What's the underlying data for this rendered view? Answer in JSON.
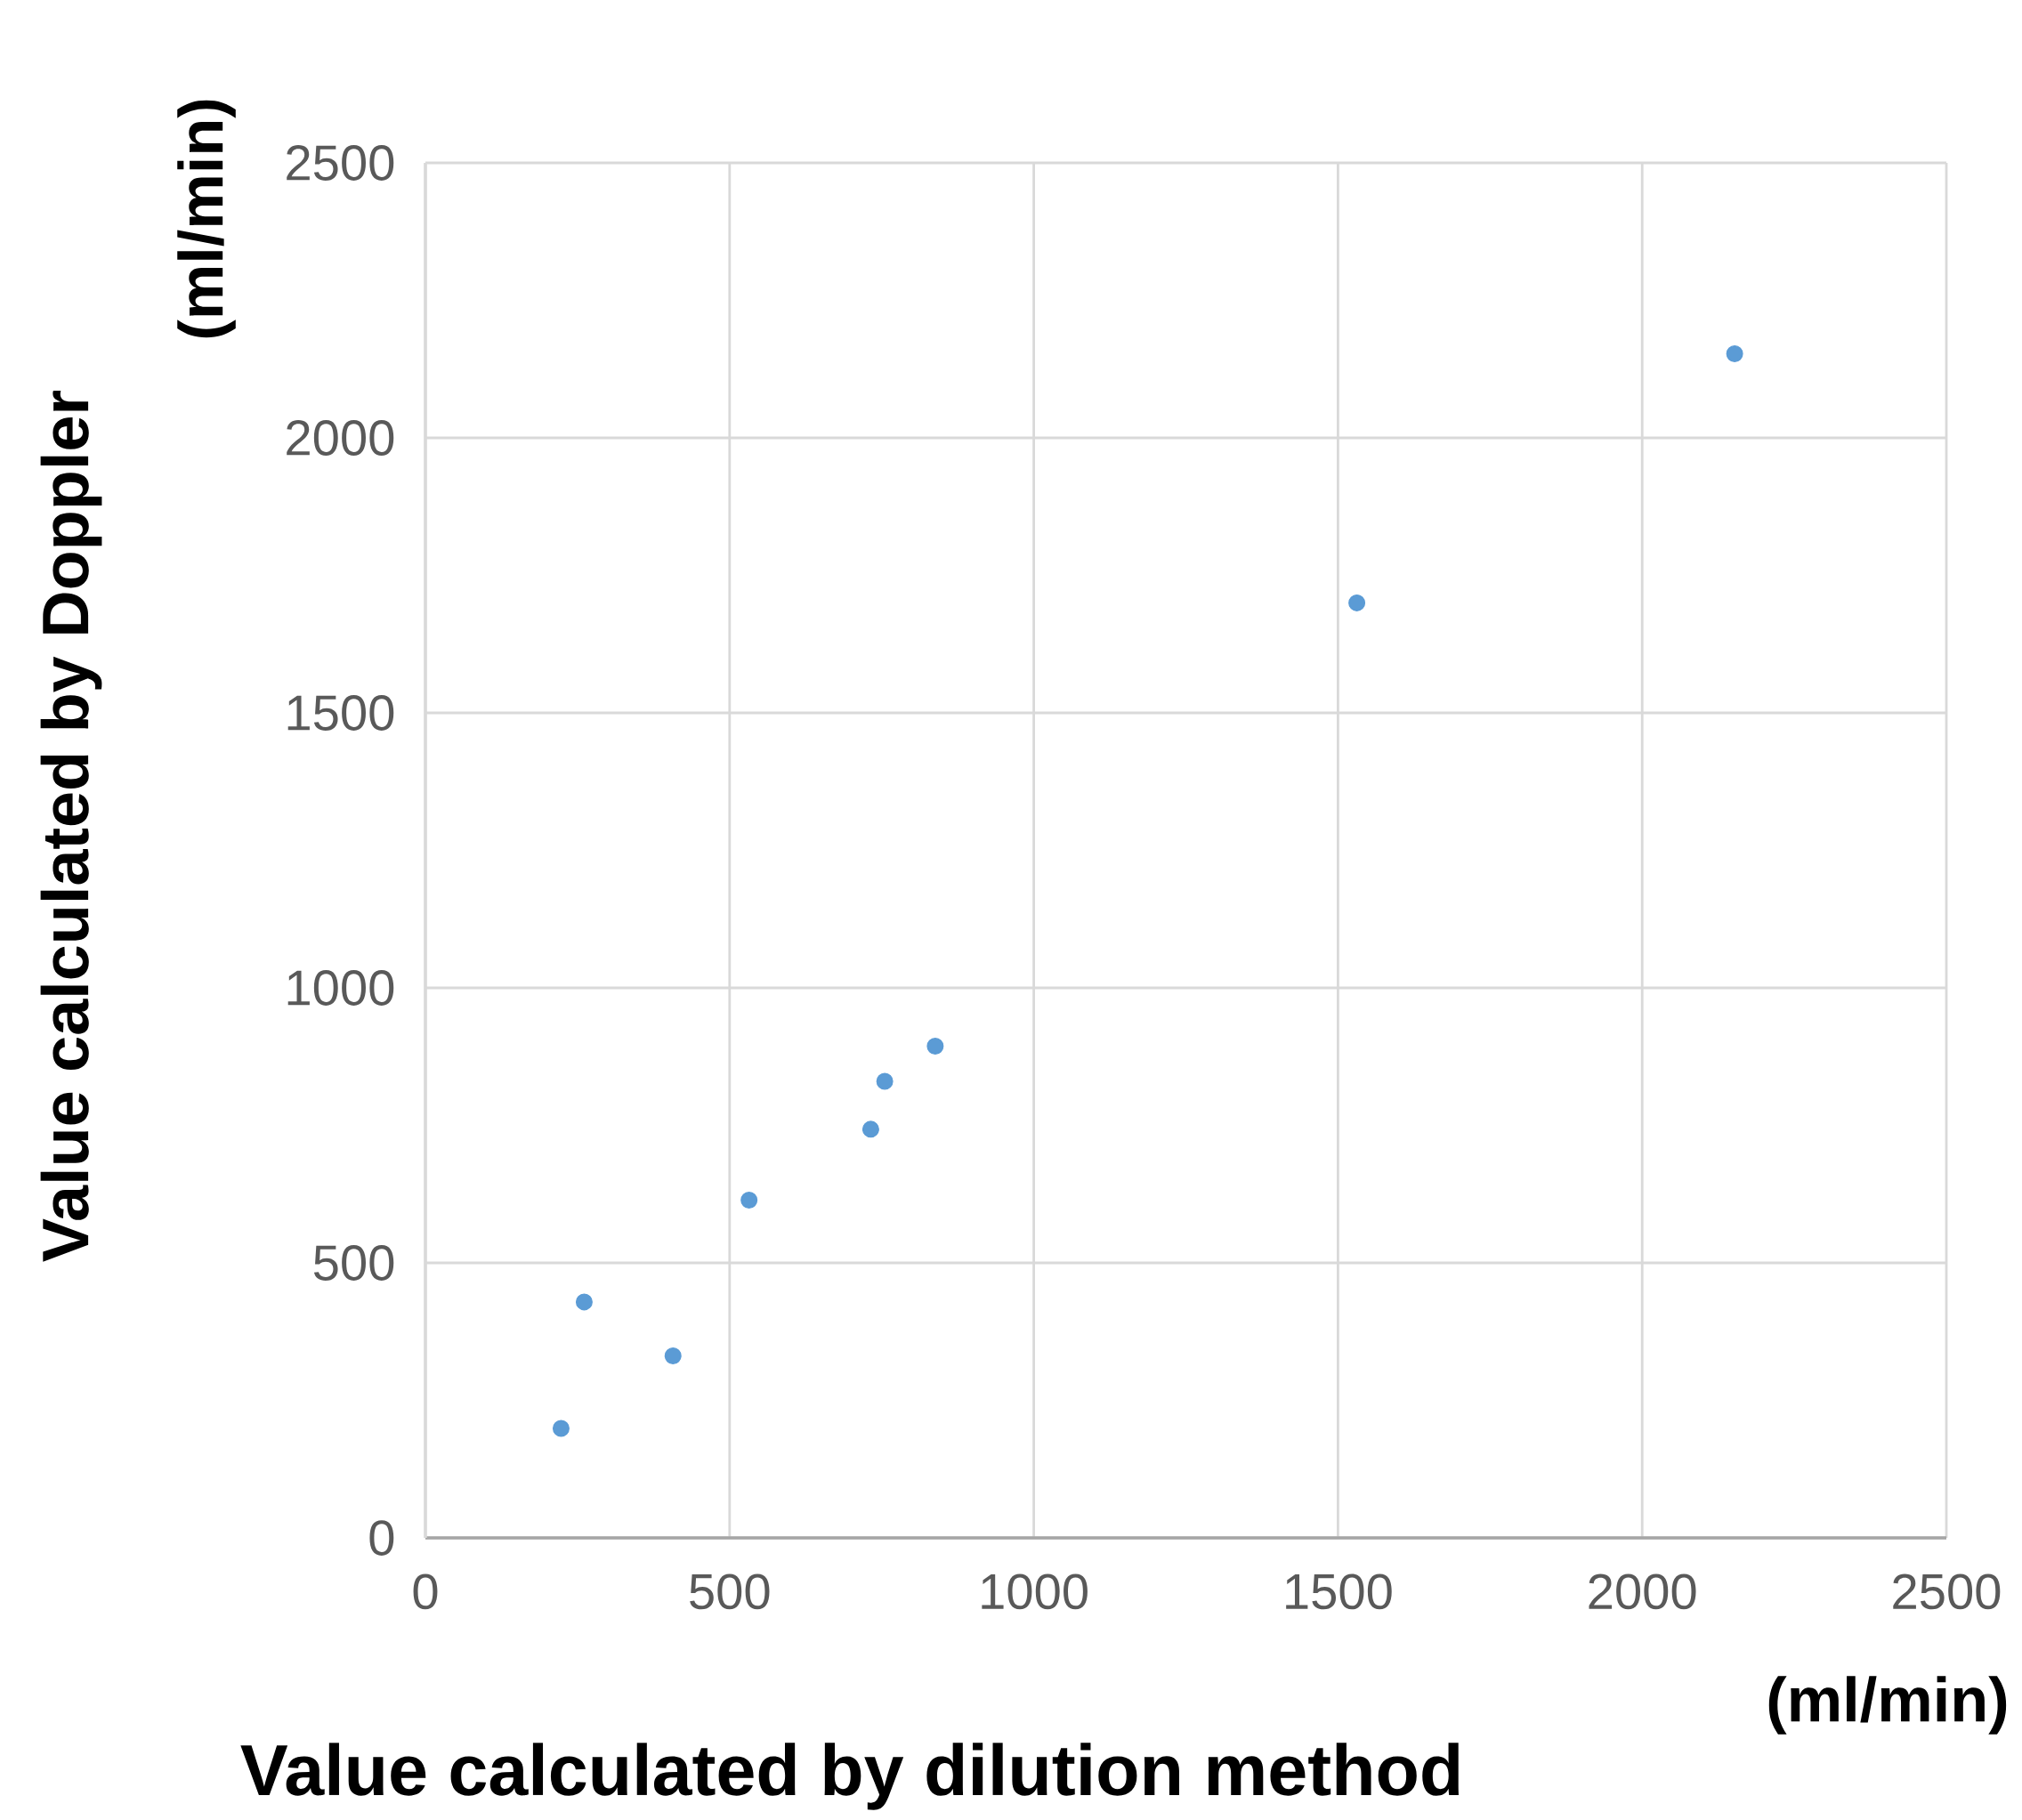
{
  "chart_data": {
    "type": "scatter",
    "xlabel": "Value calculated by dilution method",
    "ylabel": "Value calculated by Doppler",
    "annotations": [
      "(ml/min)",
      "(ml/min)"
    ],
    "x": [
      223,
      261,
      407,
      532,
      732,
      755,
      838,
      1531,
      2152
    ],
    "series": [
      {
        "color": "#5b9bd5",
        "values": [
          199,
          429,
          331,
          614,
          743,
          830,
          894,
          1700,
          2153
        ]
      }
    ],
    "xlim": [
      0,
      2500
    ],
    "ylim": [
      0,
      2500
    ],
    "xticks": [
      0,
      500,
      1000,
      1500,
      2000,
      2500
    ],
    "yticks": [
      0,
      500,
      1000,
      1500,
      2000,
      2500
    ],
    "grid": true,
    "marker": "circle"
  }
}
